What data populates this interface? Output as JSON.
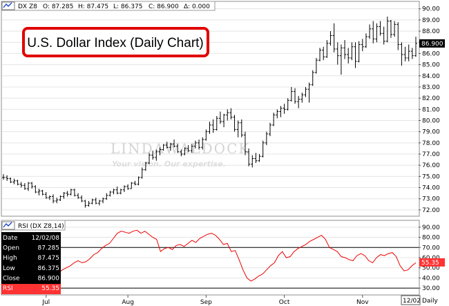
{
  "price_panel": {
    "symbol": "DX Z8",
    "open": "O: 87.285",
    "high": "H: 87.475",
    "low": "L: 86.375",
    "close": "C: 86.900",
    "change": "Δ: 0.000",
    "title": "U.S. Dollar Index (Daily Chart)",
    "last_price_label": "86.900",
    "watermark_main": "LINDAWALDOCK",
    "watermark_tagline": "Your vision. Our expertise."
  },
  "rsi_panel": {
    "label": "RSI (DX Z8,14)",
    "last_value_label": "55.35",
    "info": [
      {
        "k": "Date",
        "v": "12/02/08"
      },
      {
        "k": "Open",
        "v": "87.285"
      },
      {
        "k": "High",
        "v": "87.475"
      },
      {
        "k": "Low",
        "v": "86.375"
      },
      {
        "k": "Close",
        "v": "86.900"
      },
      {
        "k": "RSI",
        "v": "55.35"
      }
    ]
  },
  "x_axis": {
    "months": [
      "Jul",
      "Aug",
      "Sep",
      "Oct",
      "Nov"
    ],
    "end_date_label": "12/02",
    "period_label": "Daily"
  },
  "colors": {
    "price_bars": "#000000",
    "rsi_line": "#ee0000",
    "title_box_border": "#e00000",
    "last_price_box": "#000000",
    "rsi_label_box": "#ff3333",
    "grid": "#e4e4e4"
  },
  "chart_data": [
    {
      "type": "ohlc",
      "ylim": [
        71.5,
        90.6
      ],
      "y_ticks": [
        "72.00",
        "73.00",
        "74.00",
        "75.00",
        "76.00",
        "77.00",
        "78.00",
        "79.00",
        "80.00",
        "81.00",
        "82.00",
        "83.00",
        "84.00",
        "85.00",
        "86.00",
        "87.00",
        "88.00",
        "89.00",
        "90.00"
      ],
      "grid": true,
      "ohlc": [
        [
          74.9,
          75.2,
          74.7,
          74.9
        ],
        [
          74.9,
          75.1,
          74.6,
          74.8
        ],
        [
          74.8,
          74.9,
          74.4,
          74.5
        ],
        [
          74.5,
          74.8,
          74.3,
          74.6
        ],
        [
          74.6,
          74.7,
          74.2,
          74.3
        ],
        [
          74.3,
          74.5,
          74.0,
          74.2
        ],
        [
          74.2,
          74.4,
          73.8,
          73.9
        ],
        [
          73.9,
          74.5,
          73.7,
          74.4
        ],
        [
          74.4,
          74.5,
          73.9,
          74.1
        ],
        [
          74.1,
          74.2,
          73.5,
          73.6
        ],
        [
          73.6,
          73.9,
          73.3,
          73.7
        ],
        [
          73.7,
          73.8,
          73.3,
          73.4
        ],
        [
          73.4,
          73.6,
          73.0,
          73.1
        ],
        [
          73.1,
          73.3,
          72.9,
          73.2
        ],
        [
          73.2,
          73.4,
          72.6,
          72.8
        ],
        [
          72.8,
          73.1,
          72.6,
          72.9
        ],
        [
          72.9,
          73.3,
          72.8,
          73.2
        ],
        [
          73.2,
          73.6,
          73.0,
          73.5
        ],
        [
          73.5,
          73.7,
          73.2,
          73.4
        ],
        [
          73.4,
          73.9,
          73.3,
          73.8
        ],
        [
          73.8,
          73.9,
          73.2,
          73.3
        ],
        [
          73.3,
          73.5,
          73.0,
          73.1
        ],
        [
          73.1,
          73.3,
          72.7,
          72.8
        ],
        [
          72.8,
          72.9,
          72.2,
          72.4
        ],
        [
          72.4,
          72.8,
          72.3,
          72.6
        ],
        [
          72.6,
          73.0,
          72.5,
          72.9
        ],
        [
          72.9,
          73.1,
          72.5,
          72.6
        ],
        [
          72.6,
          72.9,
          72.4,
          72.8
        ],
        [
          72.8,
          73.1,
          72.6,
          73.0
        ],
        [
          73.0,
          73.5,
          72.9,
          73.3
        ],
        [
          73.3,
          73.7,
          73.2,
          73.6
        ],
        [
          73.6,
          73.9,
          73.4,
          73.8
        ],
        [
          73.8,
          74.1,
          73.4,
          73.5
        ],
        [
          73.5,
          73.9,
          73.4,
          73.8
        ],
        [
          73.8,
          74.2,
          73.6,
          74.1
        ],
        [
          74.1,
          74.3,
          73.8,
          73.9
        ],
        [
          73.9,
          74.5,
          73.9,
          74.4
        ],
        [
          74.4,
          74.6,
          74.2,
          74.3
        ],
        [
          74.3,
          75.0,
          74.2,
          74.9
        ],
        [
          74.9,
          75.8,
          74.8,
          75.6
        ],
        [
          75.6,
          76.3,
          75.5,
          76.2
        ],
        [
          76.2,
          77.1,
          76.1,
          76.9
        ],
        [
          76.9,
          77.3,
          76.5,
          76.7
        ],
        [
          76.7,
          77.4,
          76.4,
          77.2
        ],
        [
          77.2,
          77.6,
          76.9,
          77.4
        ],
        [
          77.4,
          77.9,
          77.3,
          77.8
        ],
        [
          77.8,
          78.1,
          77.5,
          77.6
        ],
        [
          77.6,
          78.0,
          77.3,
          77.9
        ],
        [
          77.9,
          78.3,
          77.6,
          77.7
        ],
        [
          77.7,
          77.9,
          77.1,
          77.2
        ],
        [
          77.2,
          77.4,
          76.8,
          77.0
        ],
        [
          77.0,
          77.6,
          76.9,
          77.5
        ],
        [
          77.5,
          77.8,
          77.2,
          77.3
        ],
        [
          77.3,
          77.9,
          77.1,
          77.7
        ],
        [
          77.7,
          78.2,
          77.5,
          78.0
        ],
        [
          78.0,
          78.3,
          77.4,
          77.6
        ],
        [
          77.6,
          78.5,
          77.4,
          78.3
        ],
        [
          78.3,
          79.2,
          78.2,
          79.0
        ],
        [
          79.0,
          79.9,
          78.8,
          79.6
        ],
        [
          79.6,
          80.1,
          78.9,
          79.2
        ],
        [
          79.2,
          80.4,
          79.1,
          80.2
        ],
        [
          80.2,
          80.8,
          79.7,
          79.9
        ],
        [
          79.9,
          80.6,
          79.4,
          80.5
        ],
        [
          80.5,
          81.0,
          80.0,
          80.7
        ],
        [
          80.7,
          81.1,
          80.1,
          80.3
        ],
        [
          80.3,
          80.5,
          79.0,
          79.2
        ],
        [
          79.2,
          80.0,
          78.5,
          79.8
        ],
        [
          79.8,
          80.1,
          78.5,
          78.7
        ],
        [
          78.7,
          79.0,
          76.9,
          77.2
        ],
        [
          77.2,
          77.5,
          75.9,
          76.1
        ],
        [
          76.1,
          76.9,
          75.8,
          76.6
        ],
        [
          76.6,
          77.1,
          76.2,
          76.4
        ],
        [
          76.4,
          77.0,
          76.3,
          76.8
        ],
        [
          76.8,
          78.2,
          76.7,
          78.0
        ],
        [
          78.0,
          79.0,
          77.8,
          78.8
        ],
        [
          78.8,
          79.8,
          78.6,
          79.6
        ],
        [
          79.6,
          80.7,
          79.5,
          80.5
        ],
        [
          80.5,
          81.0,
          80.2,
          80.8
        ],
        [
          80.8,
          81.3,
          80.3,
          81.1
        ],
        [
          81.1,
          81.5,
          80.6,
          81.0
        ],
        [
          81.0,
          82.0,
          80.9,
          81.8
        ],
        [
          81.8,
          83.0,
          81.7,
          82.6
        ],
        [
          82.6,
          82.9,
          81.5,
          81.7
        ],
        [
          81.7,
          82.2,
          81.1,
          81.9
        ],
        [
          81.9,
          82.5,
          81.6,
          82.3
        ],
        [
          82.3,
          83.0,
          82.1,
          82.8
        ],
        [
          82.8,
          83.4,
          81.6,
          83.2
        ],
        [
          83.2,
          84.5,
          83.1,
          84.3
        ],
        [
          84.3,
          85.6,
          84.2,
          85.4
        ],
        [
          85.4,
          86.5,
          85.3,
          86.3
        ],
        [
          86.3,
          86.6,
          85.4,
          85.7
        ],
        [
          85.7,
          87.2,
          85.6,
          86.9
        ],
        [
          86.9,
          88.0,
          86.7,
          87.6
        ],
        [
          87.6,
          88.7,
          86.1,
          86.4
        ],
        [
          86.4,
          87.0,
          85.0,
          85.8
        ],
        [
          85.8,
          86.8,
          84.1,
          86.5
        ],
        [
          86.5,
          87.2,
          85.5,
          85.9
        ],
        [
          85.9,
          86.5,
          85.1,
          85.6
        ],
        [
          85.6,
          87.0,
          85.4,
          86.6
        ],
        [
          86.6,
          87.0,
          84.7,
          85.3
        ],
        [
          85.3,
          87.1,
          85.2,
          86.8
        ],
        [
          86.8,
          87.3,
          86.2,
          86.6
        ],
        [
          86.6,
          87.8,
          86.5,
          87.5
        ],
        [
          87.5,
          88.6,
          87.3,
          88.2
        ],
        [
          88.2,
          88.9,
          86.9,
          87.3
        ],
        [
          87.3,
          88.7,
          87.0,
          88.4
        ],
        [
          88.4,
          88.9,
          87.6,
          87.8
        ],
        [
          87.8,
          88.4,
          86.8,
          87.1
        ],
        [
          87.1,
          89.3,
          87.0,
          88.9
        ],
        [
          88.9,
          89.0,
          87.4,
          87.7
        ],
        [
          87.7,
          88.9,
          87.5,
          88.6
        ],
        [
          88.6,
          88.8,
          86.3,
          86.8
        ],
        [
          86.8,
          87.0,
          84.9,
          85.9
        ],
        [
          85.9,
          86.6,
          85.3,
          85.6
        ],
        [
          85.6,
          86.8,
          85.3,
          86.2
        ],
        [
          86.2,
          86.5,
          85.5,
          85.8
        ],
        [
          85.8,
          87.5,
          85.7,
          86.9
        ]
      ]
    },
    {
      "type": "line",
      "ylim": [
        24,
        96
      ],
      "y_ticks": [
        "30.00",
        "40.00",
        "50.00",
        "60.00",
        "70.00",
        "80.00",
        "90.00"
      ],
      "reference_lines": [
        30,
        70
      ],
      "series": [
        {
          "values": [
            52,
            53,
            50,
            45,
            47,
            44,
            41,
            40,
            44,
            46,
            43,
            41,
            40,
            43,
            45,
            48,
            50,
            52,
            55,
            57,
            55,
            56,
            59,
            63,
            65,
            69,
            72,
            74,
            79,
            84,
            86,
            85,
            84,
            86,
            87,
            84,
            86,
            83,
            80,
            78,
            66,
            69,
            70,
            68,
            72,
            73,
            71,
            74,
            77,
            75,
            79,
            81,
            83,
            84,
            82,
            78,
            73,
            74,
            66,
            67,
            58,
            48,
            40,
            37,
            39,
            42,
            44,
            48,
            52,
            55,
            62,
            66,
            60,
            61,
            66,
            69,
            71,
            73,
            76,
            78,
            80,
            82,
            78,
            70,
            68,
            66,
            61,
            60,
            58,
            57,
            62,
            64,
            62,
            57,
            55,
            60,
            63,
            62,
            64,
            65,
            61,
            52,
            47,
            48,
            52,
            55
          ]
        }
      ]
    }
  ]
}
